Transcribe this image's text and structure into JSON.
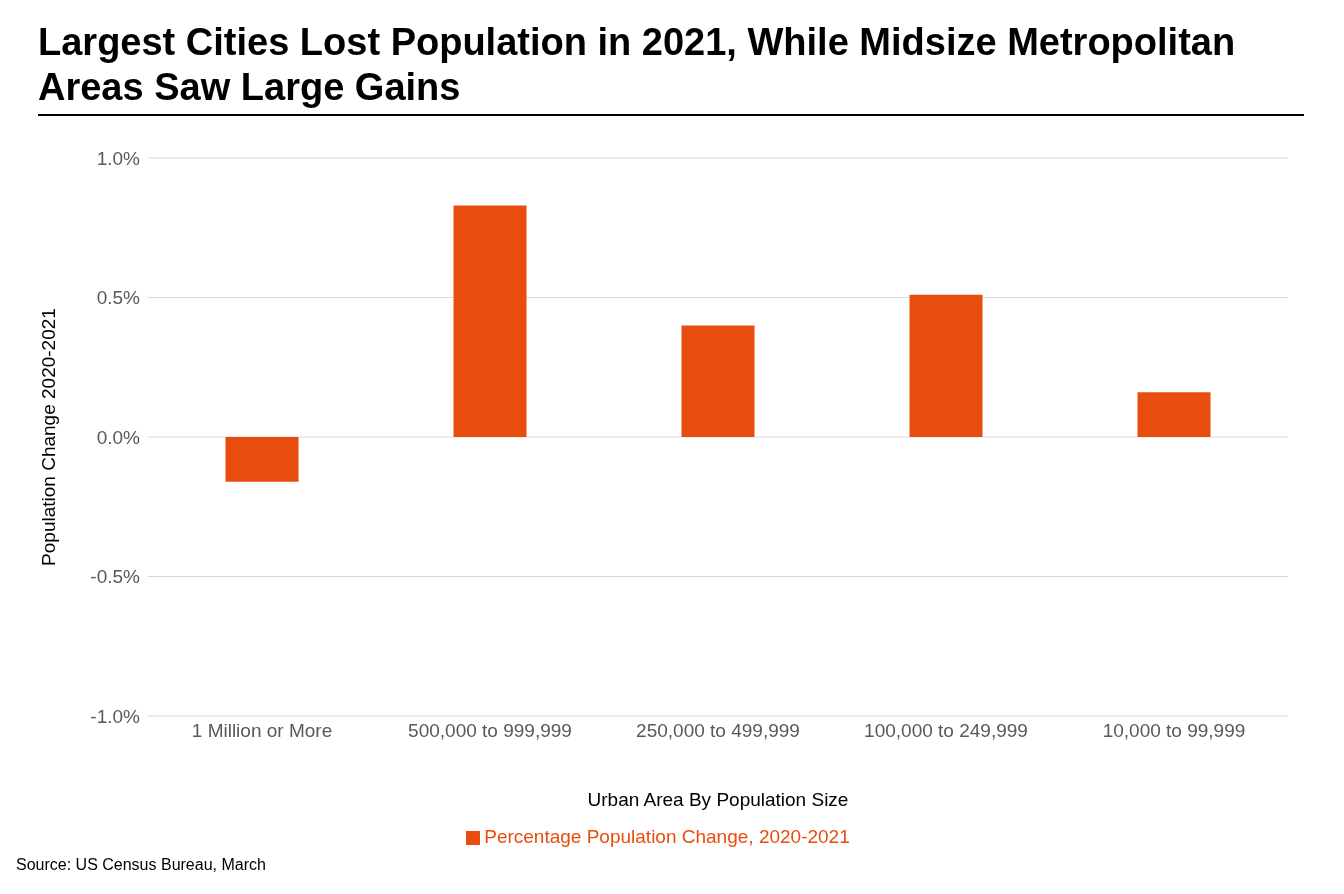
{
  "chart_data": {
    "type": "bar",
    "title": "Largest Cities Lost Population in 2021, While Midsize Metropolitan Areas Saw Large Gains",
    "xlabel": "Urban Area By Population Size",
    "ylabel": "Population Change 2020-2021",
    "categories": [
      "1 Million or More",
      "500,000 to 999,999",
      "250,000 to 499,999",
      "100,000 to 249,999",
      "10,000 to 99,999"
    ],
    "series": [
      {
        "name": "Percentage Population Change, 2020-2021",
        "color": "#e84c0e",
        "values": [
          -0.16,
          0.83,
          0.4,
          0.51,
          0.16
        ]
      }
    ],
    "ylim": [
      -1,
      1
    ],
    "yticks": [
      {
        "value": -1,
        "label": "-1.0%"
      },
      {
        "value": -0.5,
        "label": "-0.5%"
      },
      {
        "value": 0,
        "label": "0.0%"
      },
      {
        "value": 0.5,
        "label": "0.5%"
      },
      {
        "value": 1,
        "label": "1.0%"
      }
    ],
    "grid": "y",
    "legend": "bottom",
    "annotations": [
      "Source: US Census Bureau, March"
    ]
  }
}
